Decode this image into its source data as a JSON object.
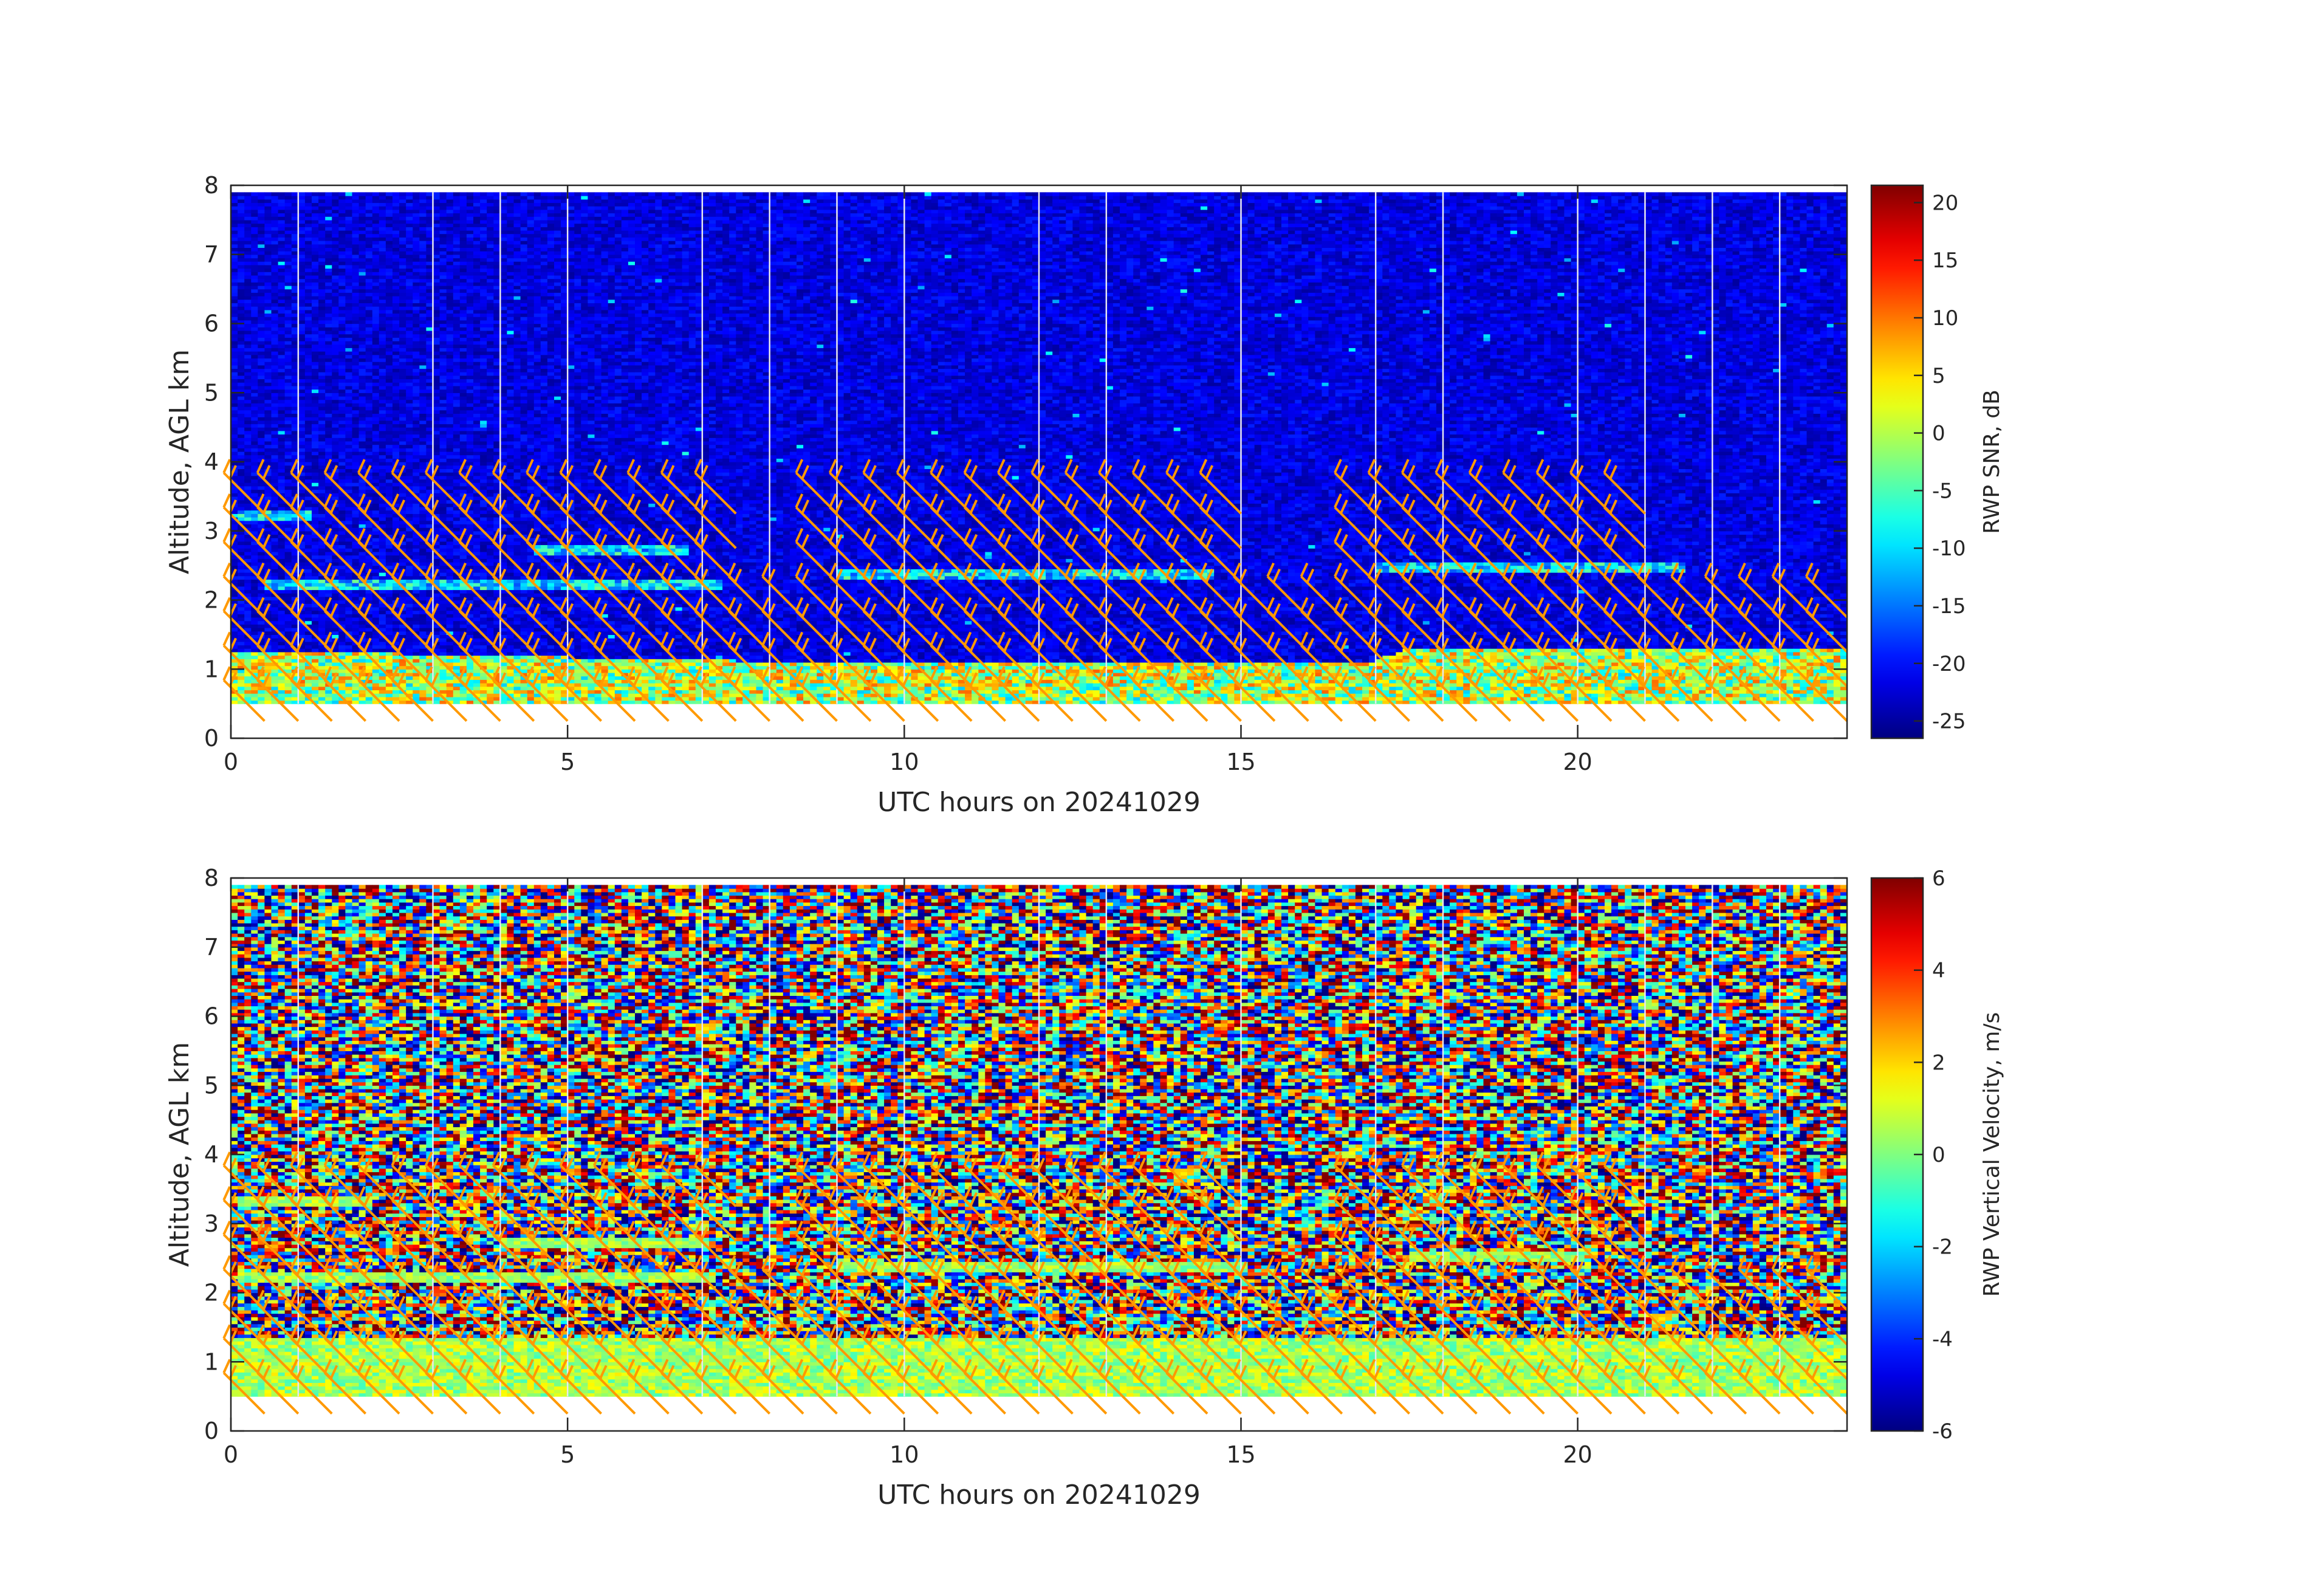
{
  "chart_data": [
    {
      "type": "heatmap",
      "xlabel": "UTC hours on 20241029",
      "ylabel": "Altitude, AGL km",
      "xlim": [
        0,
        24
      ],
      "ylim": [
        0,
        8
      ],
      "x_ticks": [
        0,
        5,
        10,
        15,
        20
      ],
      "x_tick_labels": [
        "0",
        "5",
        "10",
        "15",
        "20"
      ],
      "y_ticks": [
        0,
        1,
        2,
        3,
        4,
        5,
        6,
        7,
        8
      ],
      "y_tick_labels": [
        "0",
        "1",
        "2",
        "3",
        "4",
        "5",
        "6",
        "7",
        "8"
      ],
      "data_altitude_range_km": [
        0.5,
        7.9
      ],
      "gap_lines_hours": [
        1,
        3,
        4,
        5,
        7,
        8,
        9,
        10,
        12,
        13,
        15,
        17,
        18,
        20,
        21,
        22,
        23
      ],
      "colorbar": {
        "label": "RWP SNR, dB",
        "colormap": "jet",
        "clim": [
          -26.5,
          21.5
        ],
        "ticks": [
          20,
          15,
          10,
          5,
          0,
          -5,
          -10,
          -15,
          -20,
          -25
        ],
        "tick_labels": [
          "20",
          "15",
          "10",
          "5",
          "0",
          "-5",
          "-10",
          "-15",
          "-20",
          "-25"
        ]
      },
      "field_description": {
        "background_dB": -22,
        "boundary_layer_top_km": [
          [
            0,
            1.25
          ],
          [
            7.5,
            1.1
          ],
          [
            17,
            1.1
          ],
          [
            17.5,
            1.3
          ],
          [
            24,
            1.3
          ]
        ],
        "boundary_layer_dB": 0,
        "elevated_layers_km": [
          {
            "hours": [
              0.1,
              1.2
            ],
            "altitude": 3.2
          },
          {
            "hours": [
              0.5,
              7.2
            ],
            "altitude": 2.2
          },
          {
            "hours": [
              4.5,
              6.8
            ],
            "altitude": 2.7
          },
          {
            "hours": [
              9.0,
              14.5
            ],
            "altitude": 2.35
          },
          {
            "hours": [
              17.0,
              21.5
            ],
            "altitude": 2.45
          }
        ]
      },
      "wind_barbs": {
        "color": "#ff9900",
        "columns_hours": [
          0.5,
          1.0,
          1.5,
          2.0,
          2.5,
          3.0,
          3.5,
          4.0,
          4.5,
          5.0,
          5.5,
          6.0,
          6.5,
          7.0,
          7.5,
          8.0,
          8.5,
          9.0,
          9.5,
          10.0,
          10.5,
          11.0,
          11.5,
          12.0,
          12.5,
          13.0,
          13.5,
          14.0,
          14.5,
          15.0,
          15.5,
          16.0,
          16.5,
          17.0,
          17.5,
          18.0,
          18.5,
          19.0,
          19.5,
          20.0,
          20.5,
          21.0,
          21.5,
          22.0,
          22.5,
          23.0,
          23.5,
          24.0
        ],
        "levels_km": [
          0.25,
          0.75,
          1.25,
          1.75,
          2.25,
          2.75,
          3.25
        ],
        "direction_deg": 315,
        "speed_kt": 20
      }
    },
    {
      "type": "heatmap",
      "xlabel": "UTC hours on 20241029",
      "ylabel": "Altitude, AGL km",
      "xlim": [
        0,
        24
      ],
      "ylim": [
        0,
        8
      ],
      "x_ticks": [
        0,
        5,
        10,
        15,
        20
      ],
      "x_tick_labels": [
        "0",
        "5",
        "10",
        "15",
        "20"
      ],
      "y_ticks": [
        0,
        1,
        2,
        3,
        4,
        5,
        6,
        7,
        8
      ],
      "y_tick_labels": [
        "0",
        "1",
        "2",
        "3",
        "4",
        "5",
        "6",
        "7",
        "8"
      ],
      "data_altitude_range_km": [
        0.5,
        7.9
      ],
      "gap_lines_hours": [
        1,
        3,
        4,
        5,
        7,
        8,
        9,
        10,
        12,
        13,
        15,
        17,
        18,
        20,
        21,
        22,
        23
      ],
      "colorbar": {
        "label": "RWP Vertical Velocity, m/s",
        "colormap": "jet",
        "clim": [
          -6,
          6
        ],
        "ticks": [
          6,
          4,
          2,
          0,
          -2,
          -4,
          -6
        ],
        "tick_labels": [
          "6",
          "4",
          "2",
          "0",
          "-2",
          "-4",
          "-6"
        ]
      },
      "field_description": {
        "noise_range_ms": [
          -6,
          6
        ],
        "boundary_layer_top_km": [
          [
            0,
            1.35
          ],
          [
            7.5,
            1.35
          ],
          [
            24,
            1.35
          ]
        ],
        "boundary_layer_ms": 0.5,
        "elevated_layers_km": [
          {
            "hours": [
              0.1,
              2.0
            ],
            "altitude": 3.3,
            "ms": 0.5
          },
          {
            "hours": [
              0.1,
              7.0
            ],
            "altitude": 2.2,
            "ms": 0.3
          },
          {
            "hours": [
              4.0,
              7.0
            ],
            "altitude": 2.7,
            "ms": 0.3
          },
          {
            "hours": [
              9.0,
              15.0
            ],
            "altitude": 2.35,
            "ms": 0.3
          },
          {
            "hours": [
              17.5,
              20.0
            ],
            "altitude": 2.5,
            "ms": 0.2
          }
        ]
      },
      "wind_barbs": {
        "color": "#ff9900",
        "columns_hours": [
          0.5,
          1.0,
          1.5,
          2.0,
          2.5,
          3.0,
          3.5,
          4.0,
          4.5,
          5.0,
          5.5,
          6.0,
          6.5,
          7.0,
          7.5,
          8.0,
          8.5,
          9.0,
          9.5,
          10.0,
          10.5,
          11.0,
          11.5,
          12.0,
          12.5,
          13.0,
          13.5,
          14.0,
          14.5,
          15.0,
          15.5,
          16.0,
          16.5,
          17.0,
          17.5,
          18.0,
          18.5,
          19.0,
          19.5,
          20.0,
          20.5,
          21.0,
          21.5,
          22.0,
          22.5,
          23.0,
          23.5,
          24.0
        ],
        "levels_km": [
          0.25,
          0.75,
          1.25,
          1.75,
          2.25,
          2.75,
          3.25
        ],
        "direction_deg": 315,
        "speed_kt": 20
      }
    }
  ]
}
